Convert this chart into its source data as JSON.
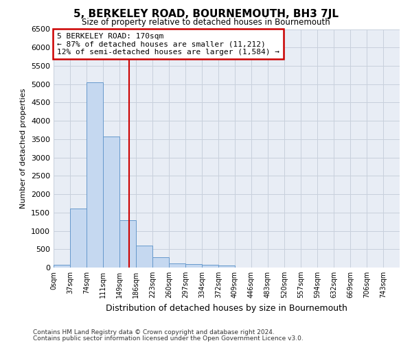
{
  "title": "5, BERKELEY ROAD, BOURNEMOUTH, BH3 7JL",
  "subtitle": "Size of property relative to detached houses in Bournemouth",
  "xlabel": "Distribution of detached houses by size in Bournemouth",
  "ylabel": "Number of detached properties",
  "footnote1": "Contains HM Land Registry data © Crown copyright and database right 2024.",
  "footnote2": "Contains public sector information licensed under the Open Government Licence v3.0.",
  "bin_labels": [
    "0sqm",
    "37sqm",
    "74sqm",
    "111sqm",
    "149sqm",
    "186sqm",
    "223sqm",
    "260sqm",
    "297sqm",
    "334sqm",
    "372sqm",
    "409sqm",
    "446sqm",
    "483sqm",
    "520sqm",
    "557sqm",
    "594sqm",
    "632sqm",
    "669sqm",
    "706sqm",
    "743sqm"
  ],
  "bar_values": [
    75,
    1600,
    5050,
    3580,
    1300,
    600,
    280,
    120,
    100,
    75,
    50,
    0,
    0,
    0,
    0,
    0,
    0,
    0,
    0,
    0,
    0
  ],
  "bar_color": "#c5d8f0",
  "bar_edge_color": "#6699cc",
  "grid_color": "#c8d0dc",
  "bg_color": "#e8edf5",
  "vline_color": "#cc0000",
  "annotation_line1": "5 BERKELEY ROAD: 170sqm",
  "annotation_line2": "← 87% of detached houses are smaller (11,212)",
  "annotation_line3": "12% of semi-detached houses are larger (1,584) →",
  "annotation_box_color": "#cc0000",
  "ylim": [
    0,
    6500
  ],
  "yticks": [
    0,
    500,
    1000,
    1500,
    2000,
    2500,
    3000,
    3500,
    4000,
    4500,
    5000,
    5500,
    6000,
    6500
  ]
}
